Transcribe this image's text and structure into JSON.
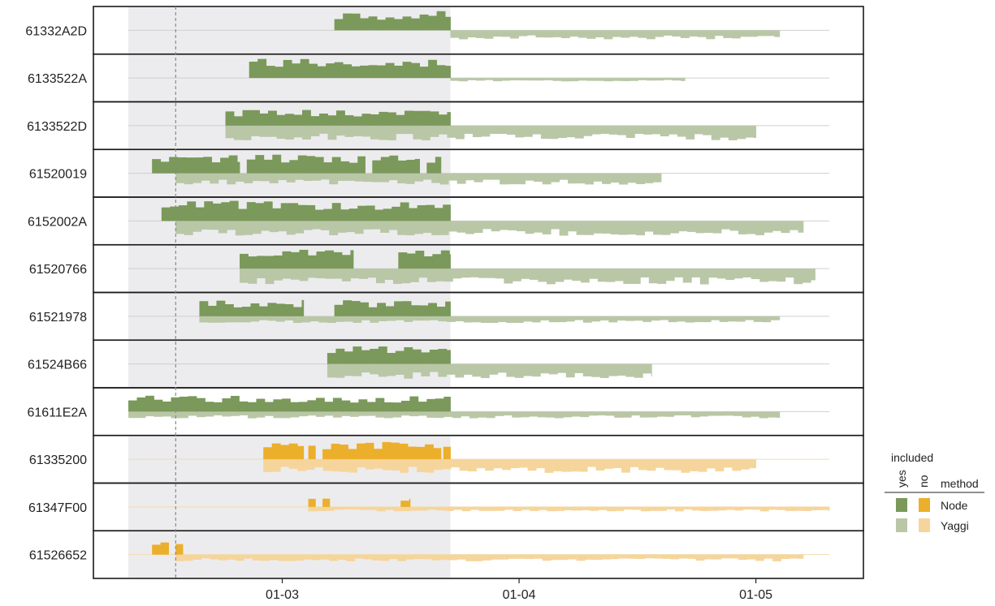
{
  "chart_data": {
    "type": "area",
    "title": "",
    "xlabel": "",
    "ylabel": "",
    "x_ticks": [
      "01-03",
      "01-04",
      "01-05"
    ],
    "x_domain_days": [
      -6.5,
      23.1
    ],
    "shaded_region_days": [
      -6.5,
      7.1
    ],
    "reference_line_day": -4.5,
    "colors": {
      "green_yes": "#7a995a",
      "green_no": "#b9c7a7",
      "orange_yes": "#ecaf2b",
      "orange_no": "#f6d59c",
      "shade": "#ececee",
      "panel_border": "#1a1a1a",
      "baseline": "#cfcfcf",
      "reference_line": "#8a8a8a"
    },
    "legend": {
      "included_title": "included",
      "included_labels": [
        "yes",
        "no"
      ],
      "method_title": "method",
      "methods": [
        "Node",
        "Yaggi"
      ]
    },
    "rows": [
      {
        "label": "61332A2D",
        "palette": "green",
        "top": {
          "segments": [
            [
              2.2,
              7.1
            ]
          ],
          "level": 0.85
        },
        "bottom": {
          "segments": [
            [
              7.1,
              21.0
            ]
          ],
          "level": 0.4
        }
      },
      {
        "label": "6133522A",
        "palette": "green",
        "top": {
          "segments": [
            [
              -1.4,
              7.1
            ]
          ],
          "level": 0.85
        },
        "bottom": {
          "segments": [
            [
              7.1,
              17.0
            ]
          ],
          "level": 0.15
        }
      },
      {
        "label": "6133522D",
        "palette": "green",
        "top": {
          "segments": [
            [
              -2.4,
              7.1
            ]
          ],
          "level": 0.72
        },
        "bottom": {
          "segments": [
            [
              -2.4,
              20.0
            ]
          ],
          "level": 0.65
        }
      },
      {
        "label": "61520019",
        "palette": "green",
        "top": {
          "segments": [
            [
              -5.5,
              -1.8
            ],
            [
              -1.5,
              3.5
            ],
            [
              3.8,
              5.8
            ],
            [
              6.1,
              6.7
            ]
          ],
          "level": 0.85
        },
        "bottom": {
          "segments": [
            [
              -4.5,
              16.0
            ]
          ],
          "level": 0.5
        }
      },
      {
        "label": "6152002A",
        "palette": "green",
        "top": {
          "segments": [
            [
              -5.1,
              7.1
            ]
          ],
          "level": 0.9
        },
        "bottom": {
          "segments": [
            [
              -4.5,
              22.0
            ]
          ],
          "level": 0.65
        }
      },
      {
        "label": "61520766",
        "palette": "green",
        "top": {
          "segments": [
            [
              -1.8,
              3.0
            ],
            [
              4.9,
              7.1
            ]
          ],
          "level": 0.85
        },
        "bottom": {
          "segments": [
            [
              -1.8,
              22.5
            ]
          ],
          "level": 0.7
        }
      },
      {
        "label": "61521978",
        "palette": "green",
        "top": {
          "segments": [
            [
              -3.5,
              0.9
            ],
            [
              2.2,
              7.1
            ]
          ],
          "level": 0.72
        },
        "bottom": {
          "segments": [
            [
              -3.5,
              21.0
            ]
          ],
          "level": 0.3
        }
      },
      {
        "label": "61524B66",
        "palette": "green",
        "top": {
          "segments": [
            [
              1.9,
              7.1
            ]
          ],
          "level": 0.85
        },
        "bottom": {
          "segments": [
            [
              1.9,
              15.6
            ]
          ],
          "level": 0.65
        }
      },
      {
        "label": "61611E2A",
        "palette": "green",
        "top": {
          "segments": [
            [
              -6.5,
              7.1
            ]
          ],
          "level": 0.72
        },
        "bottom": {
          "segments": [
            [
              -6.5,
              21.0
            ]
          ],
          "level": 0.3
        }
      },
      {
        "label": "61335200",
        "palette": "orange",
        "top": {
          "segments": [
            [
              -0.8,
              0.9
            ],
            [
              1.1,
              1.4
            ],
            [
              1.7,
              6.7
            ],
            [
              6.8,
              7.1
            ]
          ],
          "level": 0.8
        },
        "bottom": {
          "segments": [
            [
              -0.8,
              20.0
            ]
          ],
          "level": 0.6
        }
      },
      {
        "label": "61347F00",
        "palette": "orange",
        "top": {
          "segments": [
            [
              1.1,
              1.4
            ],
            [
              1.7,
              2.0
            ],
            [
              5.0,
              5.4
            ]
          ],
          "level": 0.5
        },
        "bottom": {
          "segments": [
            [
              1.1,
              23.1
            ]
          ],
          "level": 0.2
        }
      },
      {
        "label": "61526652",
        "palette": "orange",
        "top": {
          "segments": [
            [
              -5.5,
              -4.8
            ],
            [
              -4.5,
              -4.2
            ]
          ],
          "level": 0.7
        },
        "bottom": {
          "segments": [
            [
              -4.5,
              22.0
            ]
          ],
          "level": 0.3
        }
      }
    ]
  }
}
